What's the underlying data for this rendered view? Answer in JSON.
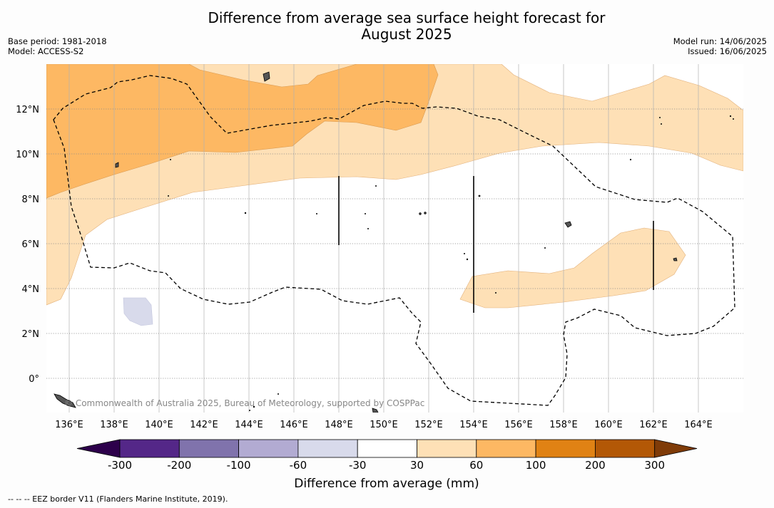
{
  "title_line1": "Difference from average sea surface height forecast for",
  "title_line2": "August 2025",
  "base_period": "Base period: 1981-2018",
  "model": "Model: ACCESS-S2",
  "model_run": "Model run: 14/06/2025",
  "issued": "Issued: 16/06/2025",
  "credit": "© Commonwealth of Australia 2025, Bureau of Meteorology, supported by COSPPac",
  "footnote": "-- -- -- EEZ border V11 (Flanders Marine Institute, 2019).",
  "lon_ticks": [
    "136°E",
    "138°E",
    "140°E",
    "142°E",
    "144°E",
    "146°E",
    "148°E",
    "150°E",
    "152°E",
    "154°E",
    "156°E",
    "158°E",
    "160°E",
    "162°E",
    "164°E"
  ],
  "lat_ticks": [
    "12°N",
    "10°N",
    "8°N",
    "6°N",
    "4°N",
    "2°N",
    "0°"
  ],
  "colorbar": {
    "label": "Difference from average (mm)",
    "ticks": [
      "-300",
      "-200",
      "-100",
      "-60",
      "-30",
      "30",
      "60",
      "100",
      "200",
      "300"
    ],
    "colors": {
      "under": "#2d004b",
      "bins": [
        "#542788",
        "#8073ac",
        "#b2abd2",
        "#d8daeb",
        "#ffffff",
        "#fee0b6",
        "#fdb863",
        "#e08214",
        "#b35806"
      ],
      "over": "#7f3b08"
    }
  },
  "map": {
    "lon_range": [
      135,
      166
    ],
    "lat_range": [
      -1.5,
      14
    ],
    "anomaly_regions": [
      {
        "level": "30 to 60 mm",
        "color": "#fee0b6"
      },
      {
        "level": "60 to 100 mm",
        "color": "#fdb863"
      },
      {
        "level": "-60 to -30 mm",
        "color": "#d8daeb"
      }
    ],
    "eez_border_style": "dashed"
  }
}
